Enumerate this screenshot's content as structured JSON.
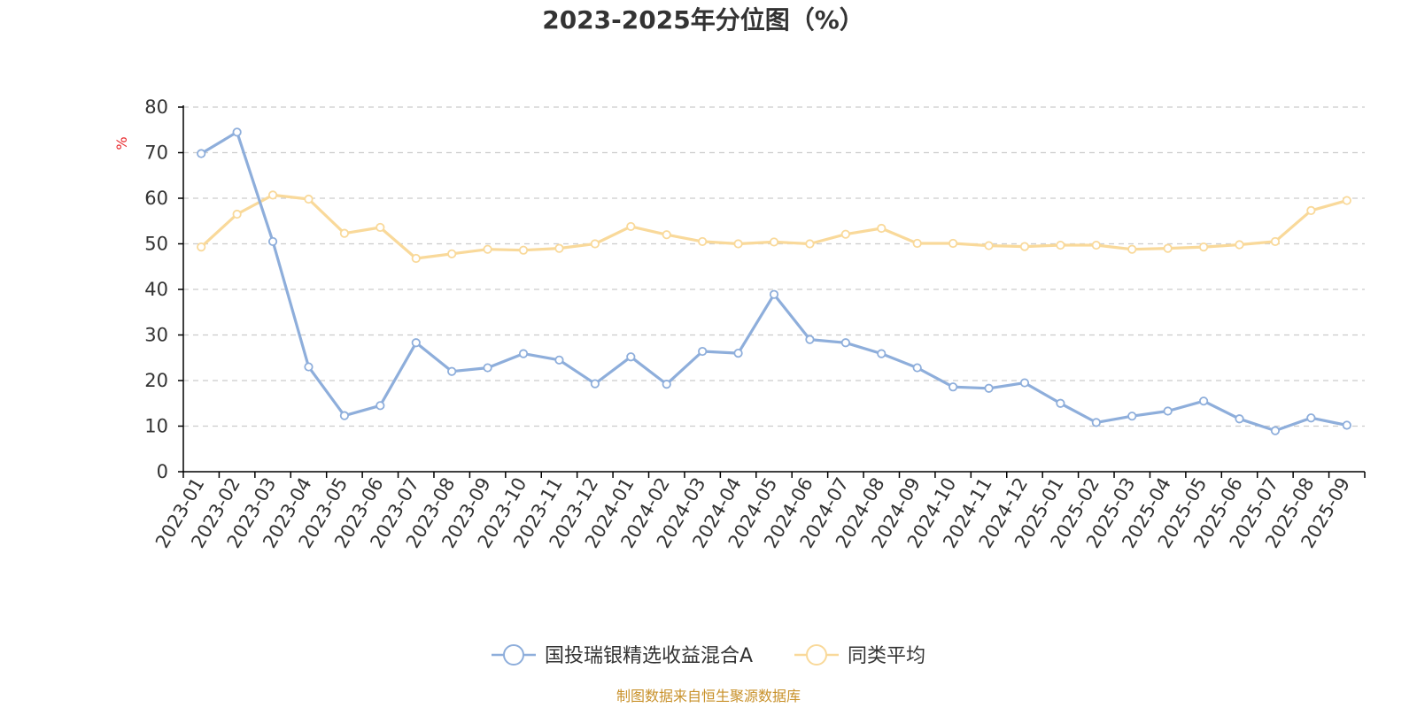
{
  "chart_data": {
    "type": "line",
    "title": "2023-2025年分位图（%）",
    "ylabel": "%",
    "xlabel": "",
    "ylim": [
      0,
      80
    ],
    "yticks": [
      0,
      10,
      20,
      30,
      40,
      50,
      60,
      70,
      80
    ],
    "grid": true,
    "legend_position": "bottom-center",
    "categories": [
      "2023-01",
      "2023-02",
      "2023-03",
      "2023-04",
      "2023-05",
      "2023-06",
      "2023-07",
      "2023-08",
      "2023-09",
      "2023-10",
      "2023-11",
      "2023-12",
      "2024-01",
      "2024-02",
      "2024-03",
      "2024-04",
      "2024-05",
      "2024-06",
      "2024-07",
      "2024-08",
      "2024-09",
      "2024-10",
      "2024-11",
      "2024-12",
      "2025-01",
      "2025-02",
      "2025-03",
      "2025-04",
      "2025-05",
      "2025-06",
      "2025-07",
      "2025-08",
      "2025-09"
    ],
    "series": [
      {
        "name": "国投瑞银精选收益混合A",
        "color": "#8eaedb",
        "values": [
          69.8,
          74.5,
          50.5,
          23.0,
          12.3,
          14.5,
          28.3,
          22.0,
          22.8,
          25.9,
          24.5,
          19.3,
          25.2,
          19.2,
          26.4,
          26.0,
          38.9,
          29.0,
          28.3,
          25.9,
          22.8,
          18.6,
          18.3,
          19.5,
          15.0,
          10.8,
          12.2,
          13.3,
          15.5,
          11.6,
          9.0,
          11.8,
          10.2
        ]
      },
      {
        "name": "同类平均",
        "color": "#f9d99a",
        "values": [
          49.3,
          56.5,
          60.7,
          59.8,
          52.3,
          53.6,
          46.8,
          47.8,
          48.8,
          48.6,
          49.0,
          50.0,
          53.8,
          52.0,
          50.5,
          50.0,
          50.4,
          50.0,
          52.1,
          53.4,
          50.1,
          50.1,
          49.6,
          49.4,
          49.7,
          49.7,
          48.8,
          49.0,
          49.3,
          49.8,
          50.5,
          57.3,
          59.5
        ]
      }
    ]
  },
  "footer": {
    "source_text": "制图数据来自恒生聚源数据库",
    "source_color": "#c8912a"
  }
}
